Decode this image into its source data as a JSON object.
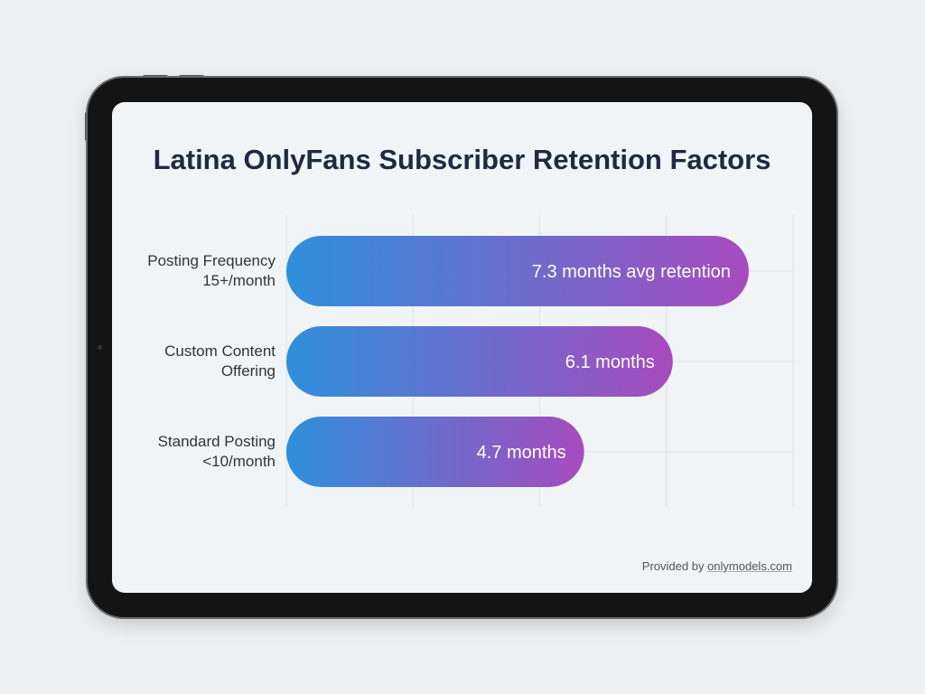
{
  "chart_data": {
    "type": "bar",
    "orientation": "horizontal",
    "title": "Latina OnlyFans Subscriber Retention Factors",
    "categories": [
      [
        "Posting Frequency",
        "15+/month"
      ],
      [
        "Custom Content",
        "Offering"
      ],
      [
        "Standard Posting",
        "<10/month"
      ]
    ],
    "values": [
      7.3,
      6.1,
      4.7
    ],
    "data_labels": [
      "7.3 months avg retention",
      "6.1 months",
      "4.7 months"
    ],
    "xlim": [
      0,
      8
    ],
    "grid": true,
    "colors": {
      "gradient_start": "#2f8fdc",
      "gradient_end": "#a74bbd"
    }
  },
  "footer": {
    "prefix": "Provided by ",
    "link": "onlymodels.com"
  }
}
